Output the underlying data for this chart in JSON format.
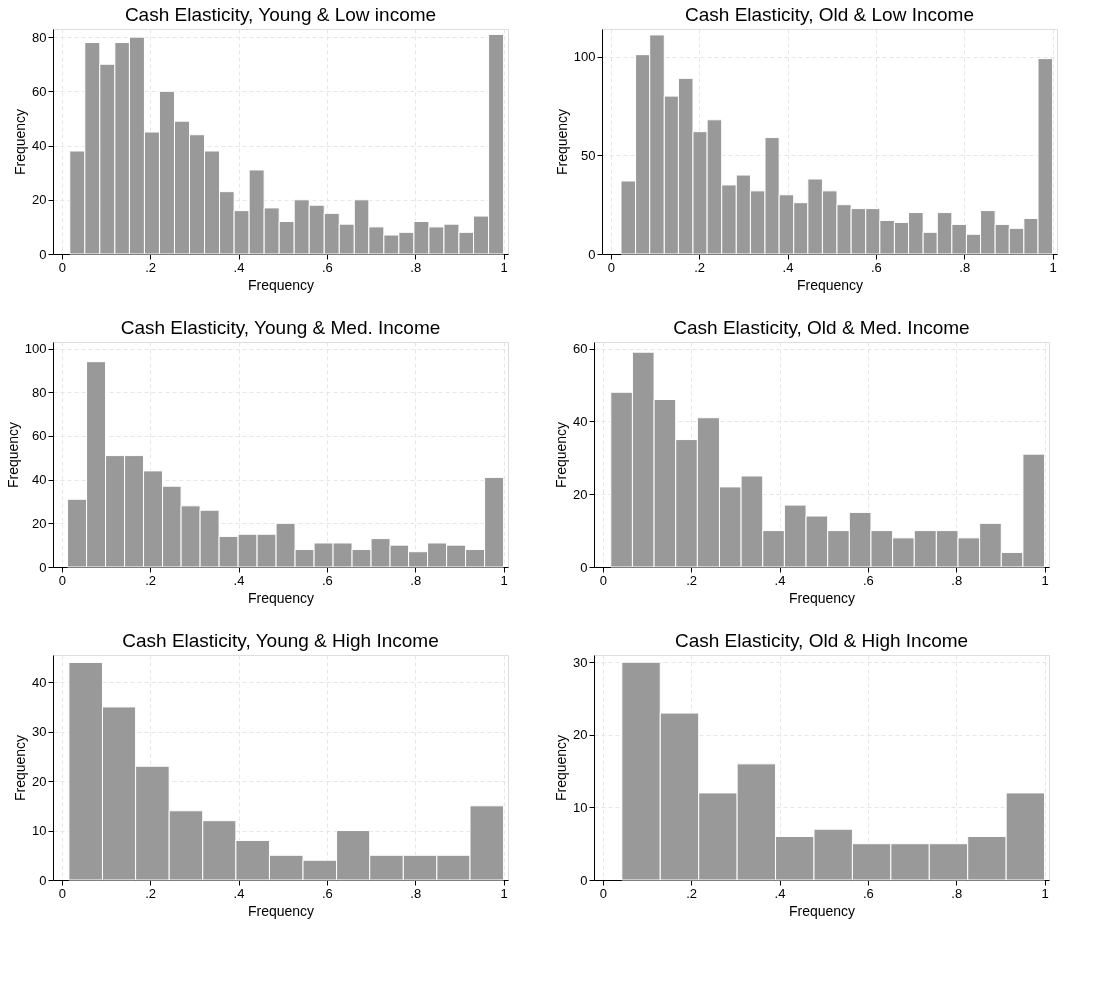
{
  "chart_data": [
    {
      "type": "histogram",
      "title": "Cash Elasticity, Young & Low income",
      "xlabel": "Frequency",
      "ylabel": "Frequency",
      "color": "#999999",
      "grid": true,
      "bins": [
        0.018,
        0.052,
        0.086,
        0.12,
        0.153,
        0.187,
        0.221,
        0.255,
        0.289,
        0.323,
        0.357,
        0.39,
        0.424,
        0.458,
        0.492,
        0.526,
        0.56,
        0.594,
        0.628,
        0.662,
        0.695,
        0.729,
        0.763,
        0.797,
        0.831,
        0.865,
        0.899,
        0.932,
        0.966,
        1.0
      ],
      "values": [
        38,
        78,
        70,
        78,
        80,
        45,
        60,
        49,
        44,
        38,
        23,
        16,
        31,
        17,
        12,
        20,
        18,
        15,
        11,
        20,
        10,
        7,
        8,
        12,
        10,
        11,
        8,
        14,
        81
      ],
      "xlim": [
        -0.02,
        1.01
      ],
      "ylim": [
        0,
        83
      ],
      "xticks": [
        {
          "value": 0,
          "label": "0"
        },
        {
          "value": 0.2,
          "label": ".2"
        },
        {
          "value": 0.4,
          "label": ".4"
        },
        {
          "value": 0.6,
          "label": ".6"
        },
        {
          "value": 0.8,
          "label": ".8"
        },
        {
          "value": 1,
          "label": "1"
        }
      ],
      "yticks": [
        0,
        20,
        40,
        60,
        80
      ]
    },
    {
      "type": "histogram",
      "title": "Cash Elasticity, Old & Low Income",
      "xlabel": "Frequency",
      "ylabel": "Frequency",
      "color": "#999999",
      "grid": true,
      "bins": [
        0.023,
        0.056,
        0.088,
        0.121,
        0.153,
        0.186,
        0.218,
        0.251,
        0.284,
        0.316,
        0.349,
        0.381,
        0.414,
        0.446,
        0.479,
        0.512,
        0.544,
        0.577,
        0.609,
        0.642,
        0.674,
        0.707,
        0.739,
        0.772,
        0.805,
        0.837,
        0.87,
        0.902,
        0.935,
        0.967,
        1.0
      ],
      "values": [
        37,
        101,
        111,
        80,
        89,
        62,
        68,
        35,
        40,
        32,
        59,
        30,
        26,
        38,
        32,
        25,
        23,
        23,
        17,
        16,
        21,
        11,
        21,
        15,
        10,
        22,
        15,
        13,
        18,
        99
      ],
      "xlim": [
        -0.02,
        1.01
      ],
      "ylim": [
        0,
        114
      ],
      "xticks": [
        {
          "value": 0,
          "label": "0"
        },
        {
          "value": 0.2,
          "label": ".2"
        },
        {
          "value": 0.4,
          "label": ".4"
        },
        {
          "value": 0.6,
          "label": ".6"
        },
        {
          "value": 0.8,
          "label": ".8"
        },
        {
          "value": 1,
          "label": "1"
        }
      ],
      "yticks": [
        0,
        50,
        100
      ]
    },
    {
      "type": "histogram",
      "title": "Cash Elasticity, Young & Med. Income",
      "xlabel": "Frequency",
      "ylabel": "Frequency",
      "color": "#999999",
      "grid": true,
      "bins": [
        0.013,
        0.056,
        0.099,
        0.142,
        0.185,
        0.228,
        0.27,
        0.313,
        0.356,
        0.399,
        0.442,
        0.485,
        0.528,
        0.571,
        0.614,
        0.657,
        0.7,
        0.743,
        0.785,
        0.828,
        0.871,
        0.914,
        0.957,
        1.0
      ],
      "values": [
        31,
        94,
        51,
        51,
        44,
        37,
        28,
        26,
        14,
        15,
        15,
        20,
        8,
        11,
        11,
        8,
        13,
        10,
        7,
        11,
        10,
        8,
        41
      ],
      "xlim": [
        -0.02,
        1.01
      ],
      "ylim": [
        0,
        103
      ],
      "xticks": [
        {
          "value": 0,
          "label": "0"
        },
        {
          "value": 0.2,
          "label": ".2"
        },
        {
          "value": 0.4,
          "label": ".4"
        },
        {
          "value": 0.6,
          "label": ".6"
        },
        {
          "value": 0.8,
          "label": ".8"
        },
        {
          "value": 1,
          "label": "1"
        }
      ],
      "yticks": [
        0,
        20,
        40,
        60,
        80,
        100
      ]
    },
    {
      "type": "histogram",
      "title": "Cash Elasticity, Old & Med. Income",
      "xlabel": "Frequency",
      "ylabel": "Frequency",
      "color": "#999999",
      "grid": true,
      "bins": [
        0.018,
        0.067,
        0.116,
        0.165,
        0.214,
        0.264,
        0.313,
        0.362,
        0.411,
        0.46,
        0.509,
        0.558,
        0.607,
        0.656,
        0.705,
        0.755,
        0.804,
        0.853,
        0.902,
        0.951,
        1.0
      ],
      "values": [
        48,
        59,
        46,
        35,
        41,
        22,
        25,
        10,
        17,
        14,
        10,
        15,
        10,
        8,
        10,
        10,
        8,
        12,
        4,
        31
      ],
      "xlim": [
        -0.02,
        1.01
      ],
      "ylim": [
        0,
        61.8
      ],
      "xticks": [
        {
          "value": 0,
          "label": "0"
        },
        {
          "value": 0.2,
          "label": ".2"
        },
        {
          "value": 0.4,
          "label": ".4"
        },
        {
          "value": 0.6,
          "label": ".6"
        },
        {
          "value": 0.8,
          "label": ".8"
        },
        {
          "value": 1,
          "label": "1"
        }
      ],
      "yticks": [
        0,
        20,
        40,
        60
      ]
    },
    {
      "type": "histogram",
      "title": "Cash Elasticity, Young & High Income",
      "xlabel": "Frequency",
      "ylabel": "Frequency",
      "color": "#999999",
      "grid": true,
      "bins": [
        0.016,
        0.092,
        0.167,
        0.243,
        0.319,
        0.394,
        0.47,
        0.546,
        0.622,
        0.697,
        0.773,
        0.849,
        0.924,
        1.0
      ],
      "values": [
        44,
        35,
        23,
        14,
        12,
        8,
        5,
        4,
        10,
        5,
        5,
        5,
        15
      ],
      "xlim": [
        -0.02,
        1.01
      ],
      "ylim": [
        0,
        45.5
      ],
      "xticks": [
        {
          "value": 0,
          "label": "0"
        },
        {
          "value": 0.2,
          "label": ".2"
        },
        {
          "value": 0.4,
          "label": ".4"
        },
        {
          "value": 0.6,
          "label": ".6"
        },
        {
          "value": 0.8,
          "label": ".8"
        },
        {
          "value": 1,
          "label": "1"
        }
      ],
      "yticks": [
        0,
        10,
        20,
        30,
        40
      ]
    },
    {
      "type": "histogram",
      "title": "Cash Elasticity, Old & High Income",
      "xlabel": "Frequency",
      "ylabel": "Frequency",
      "color": "#999999",
      "grid": true,
      "bins": [
        0.043,
        0.13,
        0.217,
        0.304,
        0.391,
        0.478,
        0.565,
        0.652,
        0.739,
        0.826,
        0.913,
        1.0
      ],
      "values": [
        30,
        23,
        12,
        16,
        6,
        7,
        5,
        5,
        5,
        6,
        12
      ],
      "xlim": [
        -0.02,
        1.01
      ],
      "ylim": [
        0,
        31
      ],
      "xticks": [
        {
          "value": 0,
          "label": "0"
        },
        {
          "value": 0.2,
          "label": ".2"
        },
        {
          "value": 0.4,
          "label": ".4"
        },
        {
          "value": 0.6,
          "label": ".6"
        },
        {
          "value": 0.8,
          "label": ".8"
        },
        {
          "value": 1,
          "label": "1"
        }
      ],
      "yticks": [
        0,
        10,
        20,
        30
      ]
    }
  ]
}
